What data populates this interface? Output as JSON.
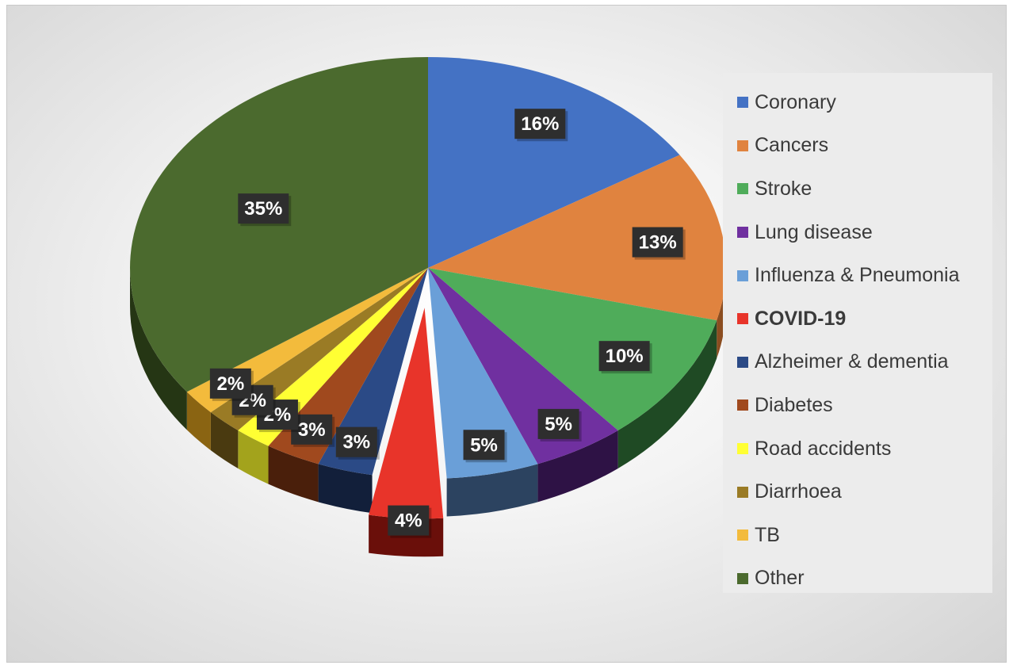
{
  "chart_data": {
    "type": "pie",
    "style": "3d-exploded-slice",
    "title": "",
    "legend_position": "right",
    "slices": [
      {
        "name": "Coronary",
        "value": 16,
        "label": "16%",
        "color": "#4472c4",
        "side": "#26417a"
      },
      {
        "name": "Cancers",
        "value": 13,
        "label": "13%",
        "color": "#e0833f",
        "side": "#8b4d20"
      },
      {
        "name": "Stroke",
        "value": 10,
        "label": "10%",
        "color": "#4fac5a",
        "side": "#1f4a24"
      },
      {
        "name": "Lung disease",
        "value": 5,
        "label": "5%",
        "color": "#7030a0",
        "side": "#2e1245"
      },
      {
        "name": "Influenza & Pneumonia",
        "value": 5,
        "label": "5%",
        "color": "#6a9fd8",
        "side": "#2c4360"
      },
      {
        "name": "COVID-19",
        "value": 4,
        "label": "4%",
        "color": "#e8342a",
        "side": "#6a0f0a",
        "bold": true,
        "exploded": true
      },
      {
        "name": "Alzheimer & dementia",
        "value": 3,
        "label": "3%",
        "color": "#2b4a86",
        "side": "#121f3a"
      },
      {
        "name": "Diabetes",
        "value": 3,
        "label": "3%",
        "color": "#a0491e",
        "side": "#4a1f0b"
      },
      {
        "name": "Road accidents",
        "value": 2,
        "label": "2%",
        "color": "#ffff33",
        "side": "#a3a31c"
      },
      {
        "name": "Diarrhoea",
        "value": 2,
        "label": "2%",
        "color": "#9a7b25",
        "side": "#4a3a10"
      },
      {
        "name": "TB",
        "value": 2,
        "label": "2%",
        "color": "#f3bb3c",
        "side": "#8a6412"
      },
      {
        "name": "Other",
        "value": 35,
        "label": "35%",
        "color": "#4b6a2e",
        "side": "#253614"
      }
    ]
  }
}
